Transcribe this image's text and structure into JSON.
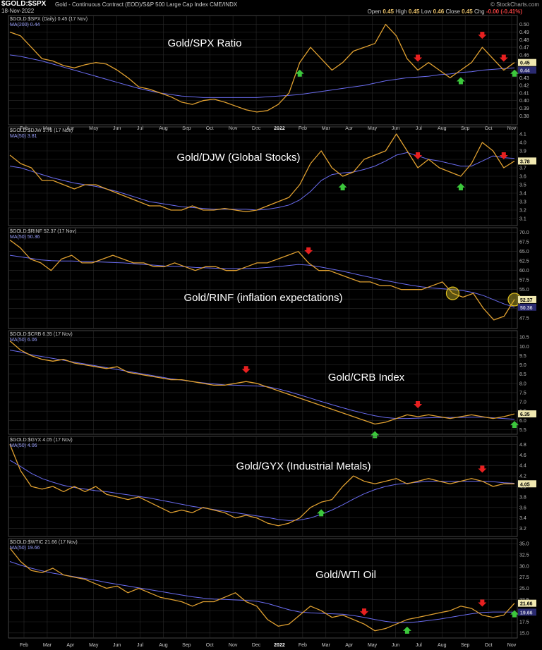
{
  "header": {
    "symbol": "$GOLD:$SPX",
    "description": "Gold - Continuous Contract (EOD)/S&P 500 Large Cap Index  CME/INDX",
    "date": "18-Nov-2022",
    "brand": "© StockCharts.com",
    "ohlc_open_label": "Open",
    "ohlc_open": "0.45",
    "ohlc_high_label": "High",
    "ohlc_high": "0.45",
    "ohlc_low_label": "Low",
    "ohlc_low": "0.46",
    "ohlc_close_label": "Close",
    "ohlc_close": "0.45",
    "ohlc_chg_label": "Chg",
    "ohlc_chg": "-0.00 (-0.41%)"
  },
  "colors": {
    "price": "#e0a030",
    "ma": "#6a6cf0",
    "up_arrow": "#3cc83c",
    "down_arrow": "#e82020",
    "grid": "#2a2a2a",
    "bg": "#000000"
  },
  "x_axis": {
    "labels": [
      "Feb",
      "Mar",
      "Apr",
      "May",
      "Jun",
      "Jul",
      "Aug",
      "Sep",
      "Oct",
      "Nov",
      "Dec",
      "2022",
      "Feb",
      "Mar",
      "Apr",
      "May",
      "Jun",
      "Jul",
      "Aug",
      "Sep",
      "Oct",
      "Nov"
    ],
    "year_label": "2022"
  },
  "chart_data": [
    {
      "type": "line",
      "panel_label": "$GOLD:$SPX (Daily) 0.45 (17 Nov)",
      "ma_label": "MA(200) 0.44",
      "title": "Gold/SPX Ratio",
      "y_ticks": [
        "0.50",
        "0.49",
        "0.48",
        "0.47",
        "0.46",
        "0.45",
        "0.44",
        "0.43",
        "0.42",
        "0.41",
        "0.40",
        "0.39",
        "0.38"
      ],
      "ylim": [
        0.372,
        0.508
      ],
      "last_price": "0.45",
      "last_ma": "0.44",
      "price": [
        0.49,
        0.485,
        0.47,
        0.455,
        0.452,
        0.446,
        0.443,
        0.447,
        0.45,
        0.448,
        0.44,
        0.43,
        0.418,
        0.415,
        0.41,
        0.405,
        0.398,
        0.395,
        0.4,
        0.402,
        0.398,
        0.393,
        0.388,
        0.385,
        0.387,
        0.395,
        0.41,
        0.45,
        0.47,
        0.455,
        0.44,
        0.45,
        0.465,
        0.47,
        0.475,
        0.5,
        0.485,
        0.455,
        0.44,
        0.45,
        0.44,
        0.43,
        0.44,
        0.45,
        0.47,
        0.455,
        0.44,
        0.45
      ],
      "ma": [
        0.46,
        0.458,
        0.455,
        0.452,
        0.448,
        0.444,
        0.44,
        0.436,
        0.432,
        0.428,
        0.424,
        0.42,
        0.416,
        0.413,
        0.41,
        0.408,
        0.406,
        0.405,
        0.404,
        0.404,
        0.404,
        0.404,
        0.404,
        0.404,
        0.405,
        0.406,
        0.407,
        0.408,
        0.41,
        0.412,
        0.414,
        0.416,
        0.418,
        0.42,
        0.423,
        0.426,
        0.428,
        0.43,
        0.431,
        0.432,
        0.434,
        0.435,
        0.437,
        0.438,
        0.44,
        0.441,
        0.442,
        0.443
      ],
      "down_arrows": [
        38,
        44,
        46
      ],
      "up_arrows": [
        27,
        42,
        47
      ]
    },
    {
      "type": "line",
      "panel_label": "$GOLD:$DJW 3.78 (17 Nov)",
      "ma_label": "MA(50) 3.81",
      "title": "Gold/DJW (Global Stocks)",
      "y_ticks": [
        "4.1",
        "4.0",
        "3.9",
        "3.8",
        "3.7",
        "3.6",
        "3.5",
        "3.4",
        "3.3",
        "3.2",
        "3.1"
      ],
      "ylim": [
        3.05,
        4.15
      ],
      "last_price": "3.78",
      "last_ma": "3.81",
      "price": [
        3.85,
        3.75,
        3.7,
        3.55,
        3.55,
        3.5,
        3.45,
        3.5,
        3.5,
        3.45,
        3.4,
        3.35,
        3.3,
        3.25,
        3.25,
        3.2,
        3.2,
        3.25,
        3.2,
        3.2,
        3.22,
        3.2,
        3.18,
        3.2,
        3.25,
        3.3,
        3.35,
        3.5,
        3.75,
        3.9,
        3.7,
        3.6,
        3.65,
        3.8,
        3.85,
        3.9,
        4.1,
        3.9,
        3.7,
        3.8,
        3.7,
        3.65,
        3.6,
        3.75,
        4.0,
        3.9,
        3.7,
        3.78
      ],
      "ma": [
        3.72,
        3.7,
        3.66,
        3.62,
        3.58,
        3.55,
        3.52,
        3.5,
        3.48,
        3.45,
        3.42,
        3.38,
        3.34,
        3.3,
        3.28,
        3.26,
        3.24,
        3.23,
        3.22,
        3.21,
        3.21,
        3.21,
        3.21,
        3.2,
        3.21,
        3.23,
        3.26,
        3.32,
        3.42,
        3.55,
        3.62,
        3.64,
        3.65,
        3.68,
        3.72,
        3.78,
        3.85,
        3.88,
        3.84,
        3.8,
        3.78,
        3.75,
        3.72,
        3.72,
        3.78,
        3.84,
        3.82,
        3.81
      ],
      "down_arrows": [
        38,
        46
      ],
      "up_arrows": [
        31,
        42
      ]
    },
    {
      "type": "line",
      "panel_label": "$GOLD:$RINF 52.37 (17 Nov)",
      "ma_label": "MA(50) 50.36",
      "title": "Gold/RINF (inflation expectations)",
      "y_ticks": [
        "70.0",
        "67.5",
        "65.0",
        "62.5",
        "60.0",
        "57.5",
        "55.0",
        "52.5",
        "50.0",
        "47.5"
      ],
      "ylim": [
        45.5,
        70.5
      ],
      "last_price": "52.37",
      "last_ma": "50.36",
      "price": [
        68,
        66,
        63,
        62,
        60,
        63,
        64,
        62,
        62,
        63,
        64,
        63,
        62,
        62,
        61,
        61,
        62,
        61,
        60,
        61,
        61,
        60,
        60,
        61,
        62,
        62,
        63,
        64,
        65,
        62,
        60,
        60,
        59,
        58,
        57,
        57,
        56,
        56,
        55,
        55,
        55,
        56,
        57,
        54,
        53,
        54,
        50,
        47,
        48,
        52.37
      ],
      "ma": [
        64,
        63.6,
        63.2,
        62.8,
        62.6,
        62.5,
        62.5,
        62.4,
        62.3,
        62.2,
        62.1,
        62,
        61.8,
        61.6,
        61.4,
        61.2,
        61.1,
        61,
        60.8,
        60.7,
        60.6,
        60.5,
        60.5,
        60.5,
        60.6,
        60.8,
        61,
        61.3,
        61.6,
        61.4,
        61,
        60.5,
        60,
        59.4,
        58.8,
        58.2,
        57.6,
        57.1,
        56.6,
        56.1,
        55.7,
        55.4,
        55.2,
        55,
        54.7,
        54.2,
        53.4,
        52.3,
        51.2,
        50.36
      ],
      "down_arrows": [
        29
      ],
      "up_arrows": [],
      "circles": [
        43,
        49
      ]
    },
    {
      "type": "line",
      "panel_label": "$GOLD:$CRB 6.35 (17 Nov)",
      "ma_label": "MA(50) 6.06",
      "title": "Gold/CRB Index",
      "y_ticks": [
        "10.5",
        "10.0",
        "9.5",
        "9.0",
        "8.5",
        "8.0",
        "7.5",
        "7.0",
        "6.5",
        "6.0",
        "5.5"
      ],
      "ylim": [
        5.4,
        10.7
      ],
      "last_price": "6.35",
      "last_ma": "6.06",
      "price": [
        10.3,
        9.8,
        9.5,
        9.3,
        9.2,
        9.3,
        9.1,
        9.0,
        8.9,
        8.8,
        8.9,
        8.6,
        8.5,
        8.4,
        8.3,
        8.2,
        8.2,
        8.1,
        8.0,
        7.9,
        7.9,
        8.0,
        8.1,
        8.0,
        7.8,
        7.6,
        7.4,
        7.2,
        7.0,
        6.8,
        6.6,
        6.4,
        6.2,
        6.0,
        5.8,
        5.9,
        6.1,
        6.3,
        6.2,
        6.3,
        6.2,
        6.1,
        6.2,
        6.3,
        6.2,
        6.1,
        6.2,
        6.35
      ],
      "ma": [
        9.8,
        9.7,
        9.55,
        9.45,
        9.35,
        9.25,
        9.15,
        9.05,
        8.95,
        8.85,
        8.75,
        8.65,
        8.55,
        8.45,
        8.35,
        8.25,
        8.18,
        8.1,
        8.03,
        7.97,
        7.92,
        7.9,
        7.88,
        7.86,
        7.82,
        7.7,
        7.55,
        7.38,
        7.2,
        7.02,
        6.85,
        6.68,
        6.52,
        6.38,
        6.25,
        6.15,
        6.1,
        6.1,
        6.12,
        6.14,
        6.15,
        6.16,
        6.16,
        6.17,
        6.17,
        6.14,
        6.1,
        6.06
      ],
      "down_arrows": [
        22,
        38
      ],
      "up_arrows": [
        34,
        47
      ]
    },
    {
      "type": "line",
      "panel_label": "$GOLD:$GYX 4.05 (17 Nov)",
      "ma_label": "MA(50) 4.06",
      "title": "Gold/GYX (Industrial Metals)",
      "y_ticks": [
        "4.8",
        "4.6",
        "4.4",
        "4.2",
        "4.0",
        "3.8",
        "3.6",
        "3.4",
        "3.2"
      ],
      "ylim": [
        3.1,
        4.9
      ],
      "last_price": "4.05",
      "last_ma": "4.06",
      "price": [
        4.8,
        4.3,
        4.0,
        3.95,
        4.0,
        3.9,
        4.0,
        3.9,
        4.0,
        3.85,
        3.8,
        3.75,
        3.8,
        3.7,
        3.6,
        3.5,
        3.55,
        3.5,
        3.6,
        3.55,
        3.5,
        3.4,
        3.45,
        3.4,
        3.3,
        3.25,
        3.3,
        3.4,
        3.6,
        3.7,
        3.75,
        4.0,
        4.2,
        4.1,
        4.05,
        4.1,
        4.15,
        4.05,
        4.1,
        4.15,
        4.1,
        4.05,
        4.1,
        4.15,
        4.1,
        4.0,
        4.05,
        4.05
      ],
      "ma": [
        4.5,
        4.38,
        4.25,
        4.15,
        4.08,
        4.02,
        3.98,
        3.95,
        3.92,
        3.9,
        3.87,
        3.84,
        3.81,
        3.78,
        3.74,
        3.7,
        3.66,
        3.62,
        3.59,
        3.56,
        3.53,
        3.5,
        3.47,
        3.44,
        3.41,
        3.37,
        3.35,
        3.36,
        3.4,
        3.47,
        3.55,
        3.65,
        3.76,
        3.86,
        3.94,
        4.0,
        4.04,
        4.06,
        4.08,
        4.1,
        4.1,
        4.1,
        4.1,
        4.1,
        4.1,
        4.09,
        4.07,
        4.06
      ],
      "down_arrows": [
        44
      ],
      "up_arrows": [
        29
      ]
    },
    {
      "type": "line",
      "panel_label": "$GOLD:$WTIC 21.66 (17 Nov)",
      "ma_label": "MA(50) 19.66",
      "title": "Gold/WTI Oil",
      "y_ticks": [
        "35.0",
        "32.5",
        "30.0",
        "27.5",
        "25.0",
        "22.5",
        "20.0",
        "17.5",
        "15.0"
      ],
      "ylim": [
        14.5,
        35.5
      ],
      "last_price": "21.66",
      "last_ma": "19.66",
      "price": [
        34,
        31,
        29,
        28.5,
        29.5,
        28,
        27.5,
        27,
        26,
        25,
        25.5,
        24,
        25,
        24,
        23,
        22.5,
        22,
        21,
        22,
        22,
        23,
        24,
        22,
        21,
        18,
        16.5,
        17,
        19,
        21,
        20,
        18.5,
        19,
        18,
        17,
        15.5,
        16,
        17,
        18,
        18.5,
        19,
        19.5,
        20,
        21,
        20.5,
        19,
        18.5,
        19,
        21.66
      ],
      "ma": [
        31,
        30.2,
        29.5,
        28.9,
        28.4,
        28,
        27.6,
        27.2,
        26.8,
        26.3,
        25.9,
        25.5,
        25.1,
        24.7,
        24.3,
        23.9,
        23.5,
        23.1,
        22.8,
        22.6,
        22.5,
        22.4,
        22.3,
        22.1,
        21.6,
        20.9,
        20.2,
        19.7,
        19.5,
        19.4,
        19.3,
        19.2,
        18.9,
        18.5,
        18.0,
        17.6,
        17.3,
        17.3,
        17.5,
        17.8,
        18.1,
        18.5,
        18.9,
        19.3,
        19.6,
        19.7,
        19.7,
        19.66
      ],
      "down_arrows": [
        33,
        44
      ],
      "up_arrows": [
        37,
        47
      ]
    }
  ]
}
